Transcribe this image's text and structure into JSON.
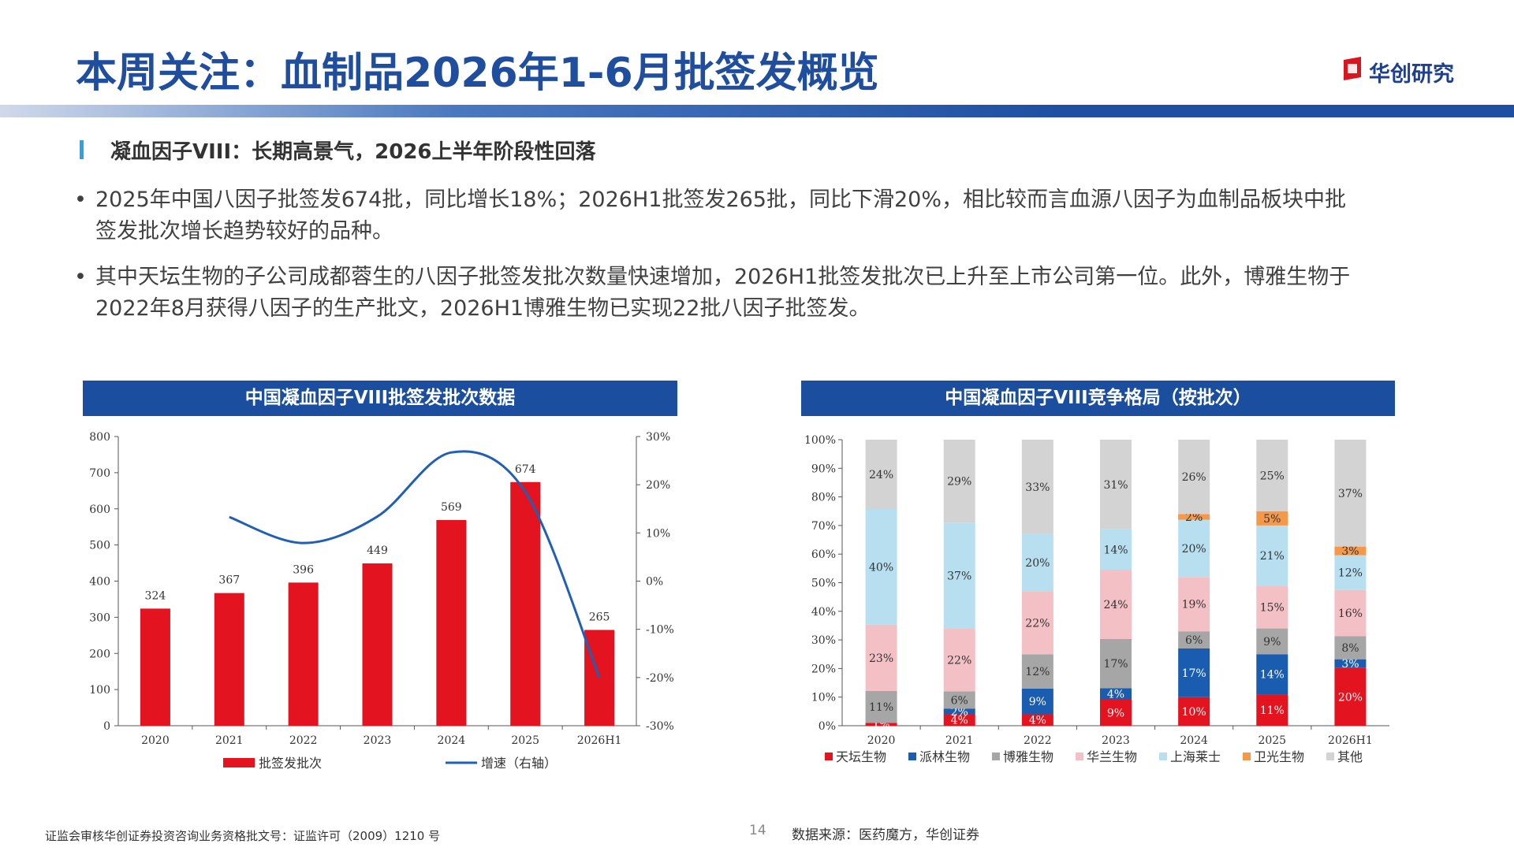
{
  "header": {
    "title": "本周关注：血制品2026年1-6月批签发概览",
    "logo_text": "华创研究"
  },
  "section": {
    "subtitle": "凝血因子VIII：长期高景气，2026上半年阶段性回落"
  },
  "bullets": [
    {
      "dot": "•",
      "text": "2025年中国八因子批签发674批，同比增长18%；2026H1批签发265批，同比下滑20%，相比较而言血源八因子为血制品板块中批签发批次增长趋势较好的品种。"
    },
    {
      "dot": "•",
      "text": "其中天坛生物的子公司成都蓉生的八因子批签发批次数量快速增加，2026H1批签发批次已上升至上市公司第一位。此外，博雅生物于2022年8月获得八因子的生产批文，2026H1博雅生物已实现22批八因子批签发。"
    }
  ],
  "panels": {
    "left_title": "中国凝血因子VIII批签发批次数据",
    "right_title": "中国凝血因子VIII竞争格局（按批次）"
  },
  "chart_data": [
    {
      "type": "bar",
      "title": "中国凝血因子VIII批签发批次数据",
      "categories": [
        "2020",
        "2021",
        "2022",
        "2023",
        "2024",
        "2025",
        "2026H1"
      ],
      "series": [
        {
          "name": "批签发批次",
          "kind": "bar",
          "axis": "left",
          "color": "#e3141f",
          "values": [
            324,
            367,
            396,
            449,
            569,
            674,
            265
          ]
        },
        {
          "name": "增速（右轴）",
          "kind": "line",
          "axis": "right",
          "color": "#1f5fb4",
          "values": [
            null,
            13.3,
            7.9,
            13.4,
            26.7,
            18.5,
            -20
          ]
        }
      ],
      "ylim": [
        0,
        800
      ],
      "yticks": [
        "0",
        "100",
        "200",
        "300",
        "400",
        "500",
        "600",
        "700",
        "800"
      ],
      "y2lim": [
        -30,
        30
      ],
      "y2ticks": [
        "-30%",
        "-20%",
        "-10%",
        "0%",
        "10%",
        "20%",
        "30%"
      ],
      "legend_position": "bottom"
    },
    {
      "type": "bar",
      "stacked": true,
      "title": "中国凝血因子VIII竞争格局（按批次）",
      "categories": [
        "2020",
        "2021",
        "2022",
        "2023",
        "2024",
        "2025",
        "2026H1"
      ],
      "ylim": [
        0,
        100
      ],
      "yticks": [
        "0%",
        "10%",
        "20%",
        "30%",
        "40%",
        "50%",
        "60%",
        "70%",
        "80%",
        "90%",
        "100%"
      ],
      "series": [
        {
          "name": "天坛生物",
          "color": "#e3141f",
          "values": [
            1,
            4,
            4,
            9,
            10,
            11,
            20
          ],
          "labels": [
            "1%",
            "4%",
            "4%",
            "9%",
            "10%",
            "11%",
            "20%"
          ]
        },
        {
          "name": "派林生物",
          "color": "#1a5cb0",
          "values": [
            0,
            2,
            9,
            4,
            17,
            14,
            3
          ],
          "labels": [
            "",
            "2%",
            "9%",
            "4%",
            "17%",
            "14%",
            "3%"
          ]
        },
        {
          "name": "博雅生物",
          "color": "#a6a6a6",
          "values": [
            11,
            6,
            12,
            17,
            6,
            9,
            8
          ],
          "labels": [
            "11%",
            "6%",
            "12%",
            "17%",
            "6%",
            "9%",
            "8%"
          ]
        },
        {
          "name": "华兰生物",
          "color": "#f2c0c5",
          "values": [
            23,
            22,
            22,
            24,
            19,
            15,
            16
          ],
          "labels": [
            "23%",
            "22%",
            "22%",
            "24%",
            "19%",
            "15%",
            "16%"
          ]
        },
        {
          "name": "上海莱士",
          "color": "#b8dff0",
          "values": [
            40,
            37,
            20,
            14,
            20,
            21,
            12
          ],
          "labels": [
            "40%",
            "37%",
            "20%",
            "14%",
            "20%",
            "21%",
            "12%"
          ]
        },
        {
          "name": "卫光生物",
          "color": "#f5984a",
          "values": [
            0,
            0,
            0,
            0,
            2,
            5,
            3
          ],
          "labels": [
            "",
            "",
            "",
            "",
            "2%",
            "5%",
            "3%"
          ]
        },
        {
          "name": "其他",
          "color": "#d3d3d3",
          "values": [
            24,
            29,
            33,
            31,
            26,
            25,
            37
          ],
          "labels": [
            "24%",
            "29%",
            "33%",
            "31%",
            "26%",
            "25%",
            "37%"
          ]
        }
      ],
      "legend_position": "bottom"
    }
  ],
  "footer": {
    "license": "证监会审核华创证券投资咨询业务资格批文号：证监许可（2009）1210 号",
    "page": "14",
    "source": "数据来源：医药魔方，华创证券"
  }
}
